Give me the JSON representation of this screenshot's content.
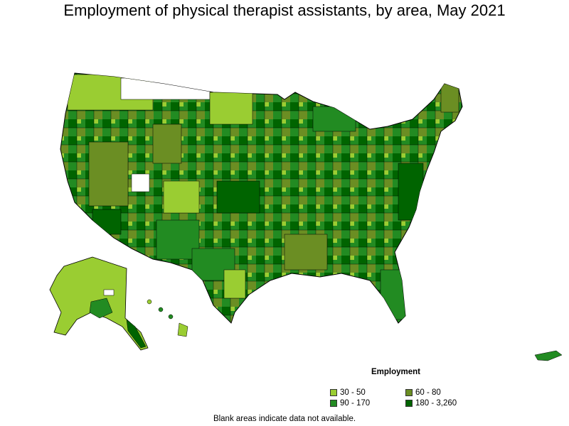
{
  "title": "Employment of physical therapist assistants, by area, May 2021",
  "legend": {
    "title": "Employment",
    "items": [
      {
        "label": "30 - 50",
        "color": "#9acd32"
      },
      {
        "label": "60 - 80",
        "color": "#6b8e23"
      },
      {
        "label": "90 - 170",
        "color": "#228b22"
      },
      {
        "label": "180 - 3,260",
        "color": "#006400"
      }
    ]
  },
  "note": "Blank areas indicate data not available."
}
